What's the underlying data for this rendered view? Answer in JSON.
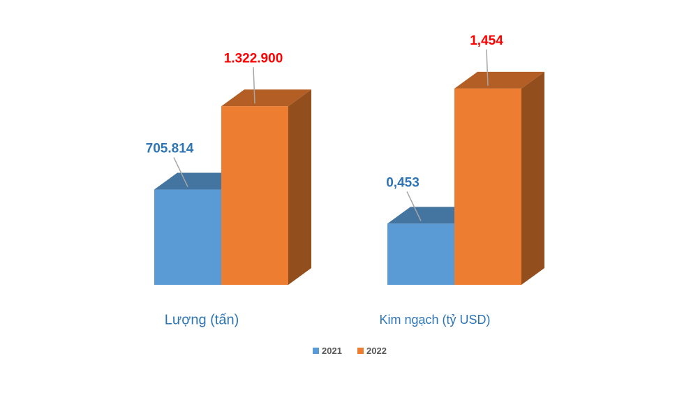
{
  "chart_data": [
    {
      "type": "bar3d",
      "categories": [
        "Lượng (tấn)"
      ],
      "ylim": [
        0,
        1500000
      ],
      "series": [
        {
          "name": "2021",
          "color": "#5b9bd5",
          "values": [
            705814
          ],
          "value_labels": [
            "705.814"
          ],
          "label_color": "#2e75b6"
        },
        {
          "name": "2022",
          "color": "#ed7d31",
          "values": [
            1322900
          ],
          "value_labels": [
            "1.322.900"
          ],
          "label_color": "#ff0000"
        }
      ]
    },
    {
      "type": "bar3d",
      "categories": [
        "Kim ngạch (tỷ USD)"
      ],
      "ylim": [
        0,
        1.5
      ],
      "series": [
        {
          "name": "2021",
          "color": "#5b9bd5",
          "values": [
            0.453
          ],
          "value_labels": [
            "0,453"
          ],
          "label_color": "#2e75b6"
        },
        {
          "name": "2022",
          "color": "#ed7d31",
          "values": [
            1.454
          ],
          "value_labels": [
            "1,454"
          ],
          "label_color": "#ff0000"
        }
      ]
    }
  ]
}
